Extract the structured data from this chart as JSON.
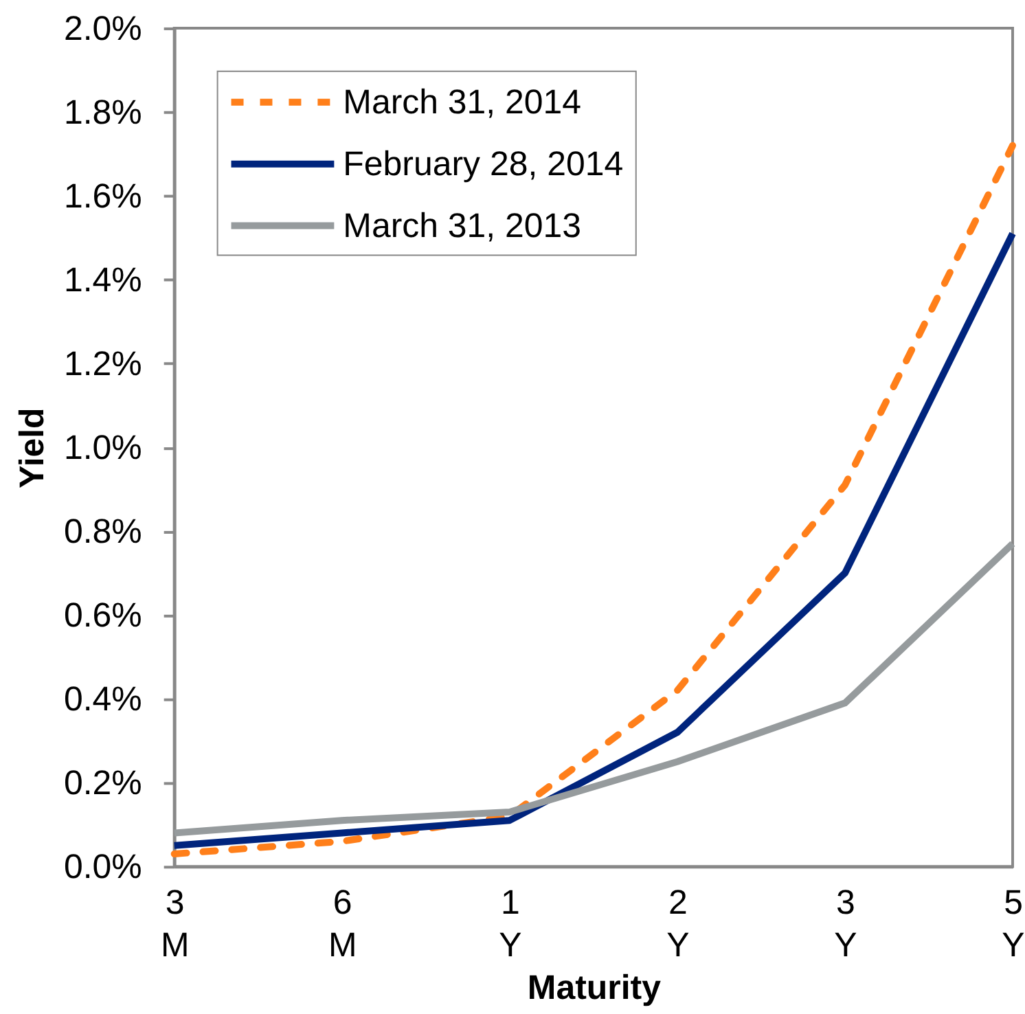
{
  "chart_data": {
    "type": "line",
    "xlabel": "Maturity",
    "ylabel": "Yield",
    "categories": [
      "3 M",
      "6 M",
      "1 Y",
      "2 Y",
      "3 Y",
      "5 Y"
    ],
    "ylim": [
      0,
      2
    ],
    "yticks": [
      {
        "value": 0,
        "label": "0.0%"
      },
      {
        "value": 0.2,
        "label": "0.2%"
      },
      {
        "value": 0.4,
        "label": "0.4%"
      },
      {
        "value": 0.6,
        "label": "0.6%"
      },
      {
        "value": 0.8,
        "label": "0.8%"
      },
      {
        "value": 1.0,
        "label": "1.0%"
      },
      {
        "value": 1.2,
        "label": "1.2%"
      },
      {
        "value": 1.4,
        "label": "1.4%"
      },
      {
        "value": 1.6,
        "label": "1.6%"
      },
      {
        "value": 1.8,
        "label": "1.8%"
      },
      {
        "value": 2.0,
        "label": "2.0%"
      }
    ],
    "series": [
      {
        "name": "March 31, 2014",
        "color": "#ff7f1a",
        "line_style": "dashed",
        "values": [
          0.03,
          0.06,
          0.12,
          0.42,
          0.91,
          1.72
        ]
      },
      {
        "name": "February 28, 2014",
        "color": "#00247d",
        "line_style": "solid",
        "values": [
          0.05,
          0.08,
          0.11,
          0.32,
          0.7,
          1.51
        ]
      },
      {
        "name": "March 31, 2013",
        "color": "#969b9d",
        "line_style": "solid",
        "values": [
          0.08,
          0.11,
          0.13,
          0.25,
          0.39,
          0.77
        ]
      }
    ],
    "legend": "top left",
    "grid": false
  }
}
